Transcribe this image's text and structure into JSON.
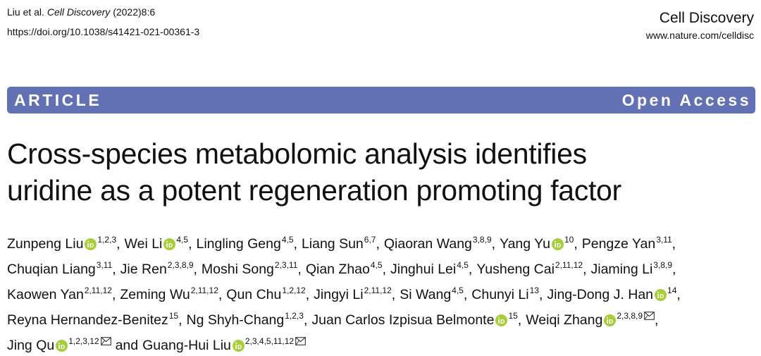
{
  "header": {
    "citation_authors": "Liu et al.",
    "citation_journal": "Cell Discovery",
    "citation_issue": "(2022)8:6",
    "doi": "https://doi.org/10.1038/s41421-021-00361-3",
    "journal": "Cell Discovery",
    "journal_url": "www.nature.com/celldisc"
  },
  "banner": {
    "article_type": "ARTICLE",
    "access": "Open Access"
  },
  "title": {
    "line1": "Cross-species metabolomic analysis identifies",
    "line2": "uridine as a potent regeneration promoting factor"
  },
  "authors_separator": ",",
  "authors_conjunction": "and",
  "authors": [
    {
      "name": "Zunpeng Liu",
      "affiliations": "1,2,3",
      "orcid": true
    },
    {
      "name": "Wei Li",
      "affiliations": "4,5",
      "orcid": true
    },
    {
      "name": "Lingling Geng",
      "affiliations": "4,5"
    },
    {
      "name": "Liang Sun",
      "affiliations": "6,7"
    },
    {
      "name": "Qiaoran Wang",
      "affiliations": "3,8,9"
    },
    {
      "name": "Yang Yu",
      "affiliations": "10",
      "orcid": true
    },
    {
      "name": "Pengze Yan",
      "affiliations": "3,11"
    },
    {
      "name": "Chuqian Liang",
      "affiliations": "3,11"
    },
    {
      "name": "Jie Ren",
      "affiliations": "2,3,8,9"
    },
    {
      "name": "Moshi Song",
      "affiliations": "2,3,11"
    },
    {
      "name": "Qian Zhao",
      "affiliations": "4,5"
    },
    {
      "name": "Jinghui Lei",
      "affiliations": "4,5"
    },
    {
      "name": "Yusheng Cai",
      "affiliations": "2,11,12"
    },
    {
      "name": "Jiaming Li",
      "affiliations": "3,8,9"
    },
    {
      "name": "Kaowen Yan",
      "affiliations": "2,11,12"
    },
    {
      "name": "Zeming Wu",
      "affiliations": "2,11,12"
    },
    {
      "name": "Qun Chu",
      "affiliations": "1,2,12"
    },
    {
      "name": "Jingyi Li",
      "affiliations": "2,11,12"
    },
    {
      "name": "Si Wang",
      "affiliations": "4,5"
    },
    {
      "name": "Chunyi Li",
      "affiliations": "13"
    },
    {
      "name": "Jing-Dong J. Han",
      "affiliations": "14",
      "orcid": true
    },
    {
      "name": "Reyna Hernandez-Benitez",
      "affiliations": "15"
    },
    {
      "name": "Ng Shyh-Chang",
      "affiliations": "1,2,3"
    },
    {
      "name": "Juan Carlos Izpisua Belmonte",
      "affiliations": "15",
      "orcid": true
    },
    {
      "name": "Weiqi Zhang",
      "affiliations": "2,3,8,9",
      "orcid": true,
      "corresponding": true
    },
    {
      "name": "Jing Qu",
      "affiliations": "1,2,3,12",
      "orcid": true,
      "corresponding": true
    },
    {
      "name": "Guang-Hui Liu",
      "affiliations": "2,3,4,5,11,12",
      "orcid": true,
      "corresponding": true
    }
  ]
}
